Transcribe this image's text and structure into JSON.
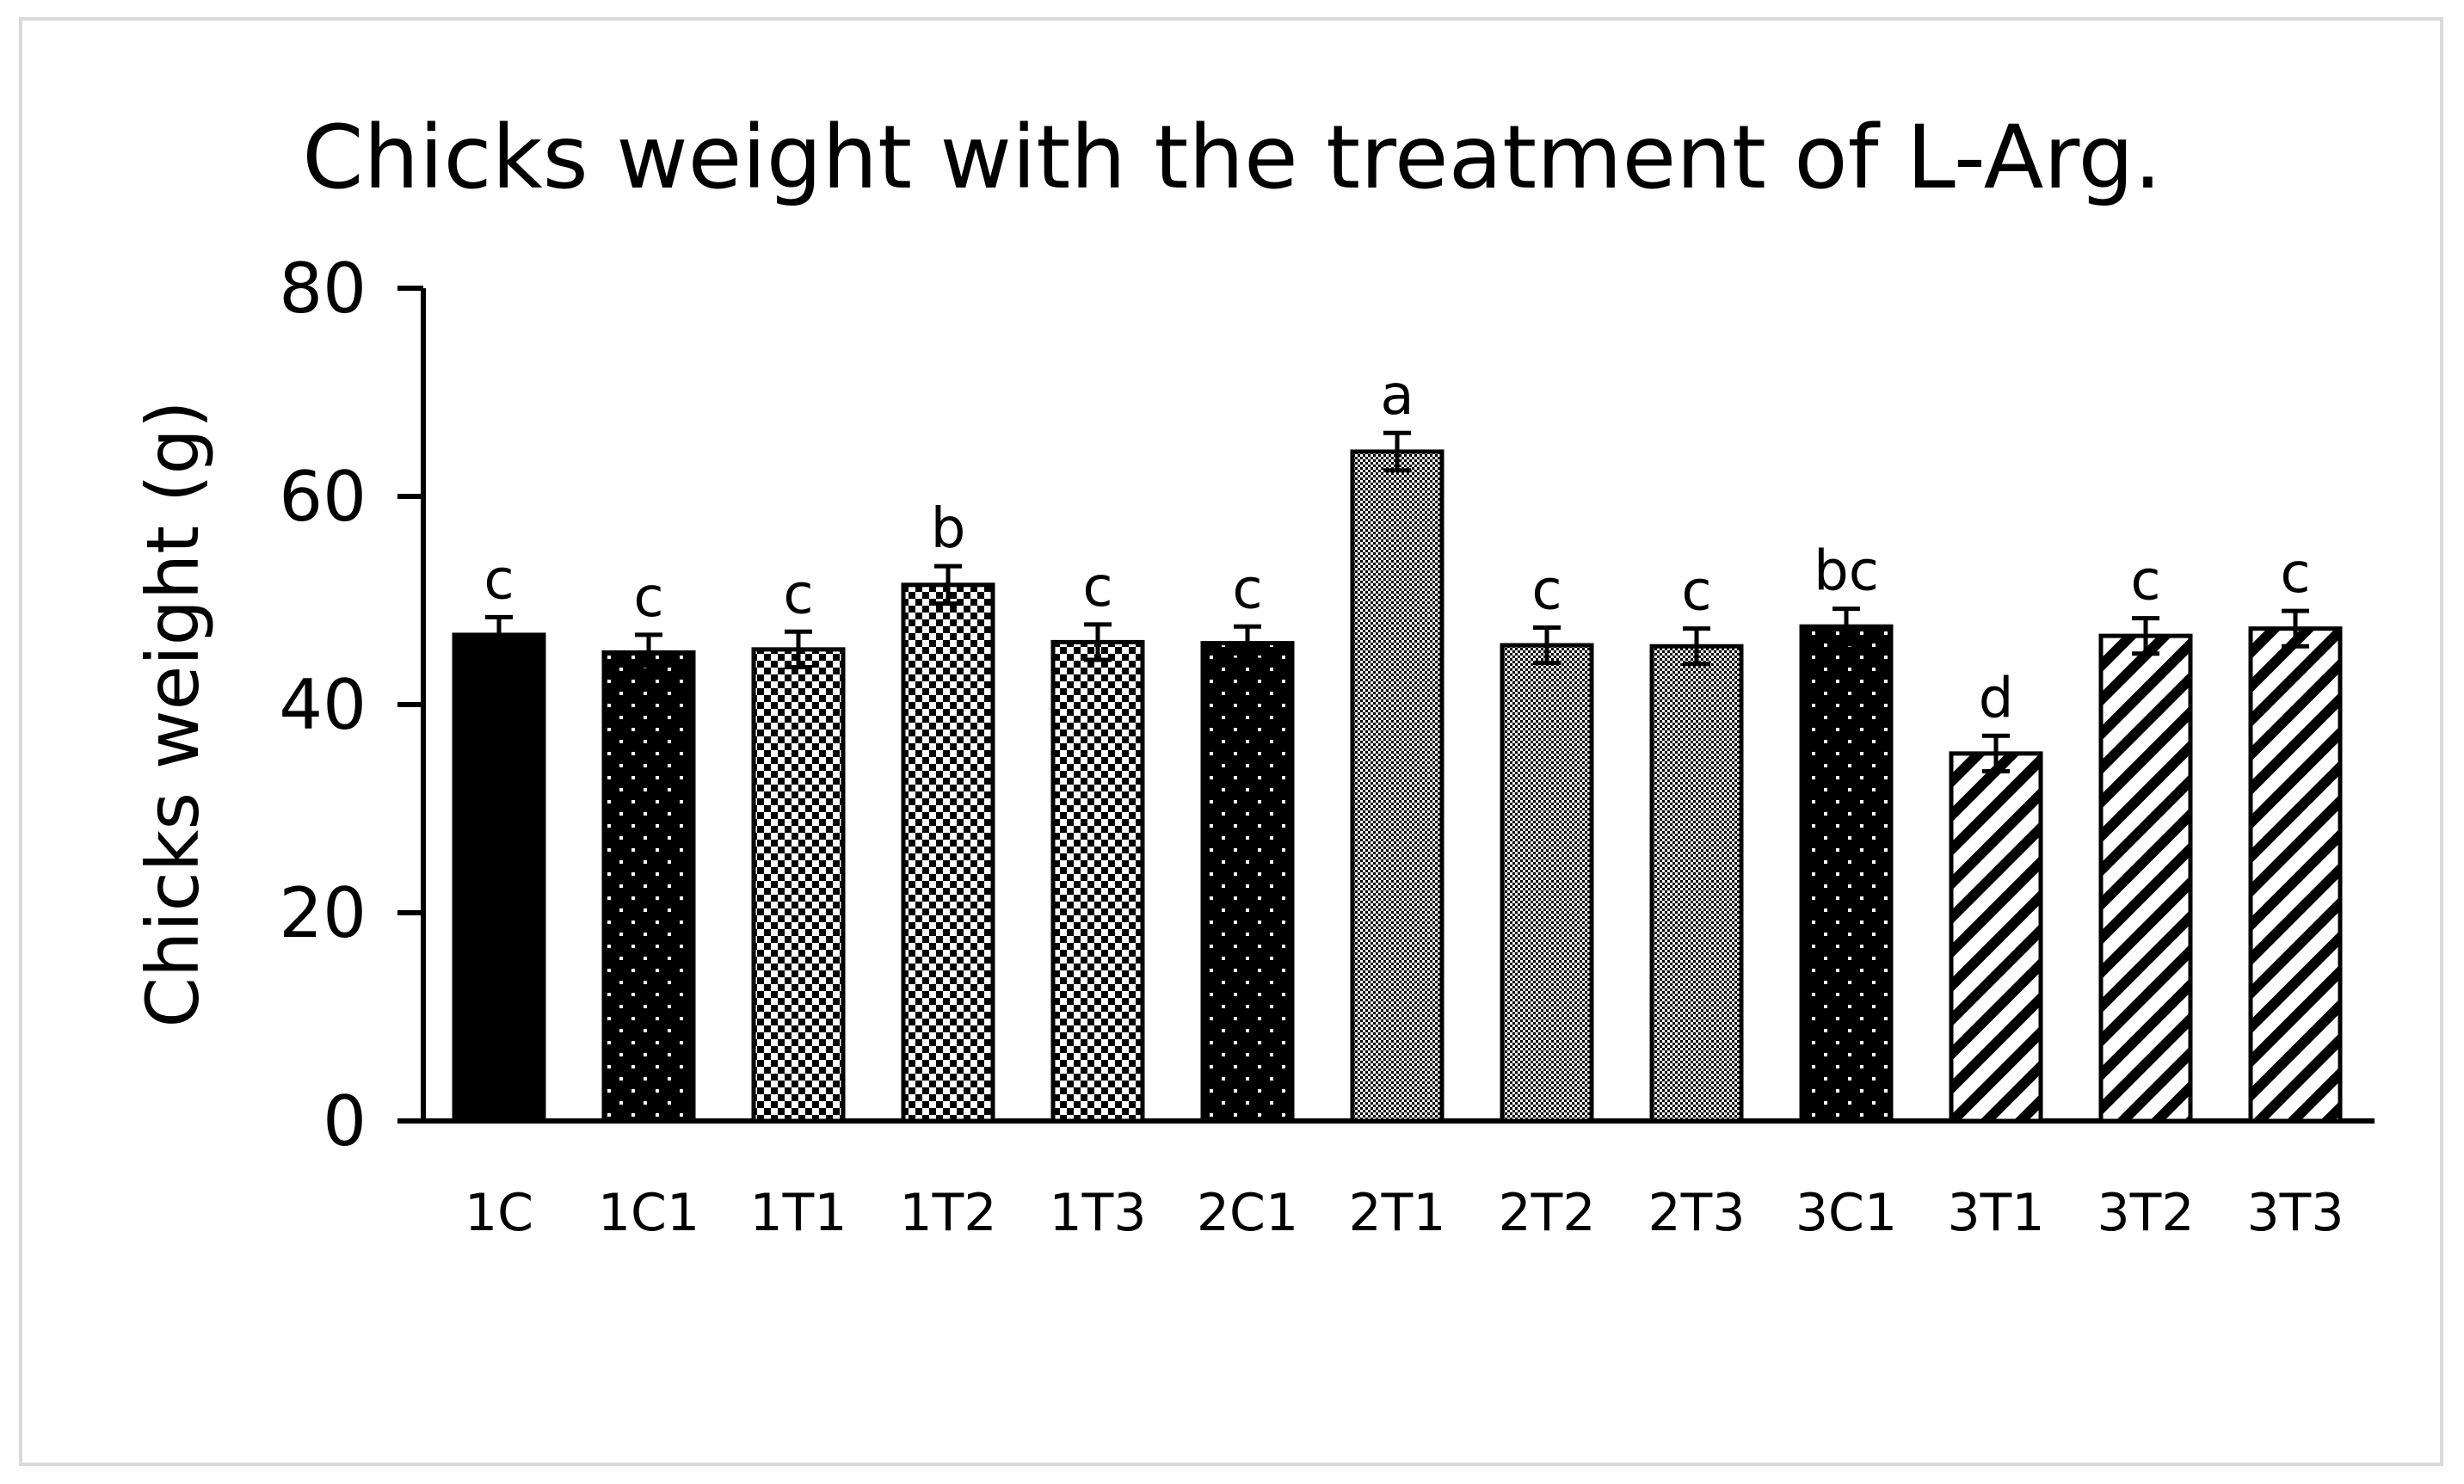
{
  "chart_data": {
    "type": "bar",
    "title": "Chicks weight with the treatment of L-Arg.",
    "xlabel": "",
    "ylabel": "Chicks weight (g)",
    "ylim": [
      0,
      80
    ],
    "yticks": [
      "0",
      "20",
      "40",
      "60",
      "80"
    ],
    "grid": false,
    "legend": "none",
    "categories": [
      "1C",
      "1C1",
      "1T1",
      "1T2",
      "1T3",
      "2C1",
      "2T1",
      "2T2",
      "2T3",
      "3C1",
      "3T1",
      "3T2",
      "3T3"
    ],
    "values": [
      46.7,
      45.0,
      45.3,
      51.5,
      46.0,
      45.9,
      64.3,
      45.7,
      45.6,
      47.5,
      35.3,
      46.6,
      47.3
    ],
    "errors": [
      1.7,
      1.7,
      1.7,
      1.8,
      1.7,
      1.6,
      1.8,
      1.7,
      1.7,
      1.7,
      1.7,
      1.7,
      1.7
    ],
    "significance": [
      "c",
      "c",
      "c",
      "b",
      "c",
      "c",
      "a",
      "c",
      "c",
      "bc",
      "d",
      "c",
      "c"
    ],
    "patterns": [
      "solid",
      "sparse-dots",
      "checker",
      "checker",
      "checker",
      "sparse-dots",
      "fine-dots",
      "fine-dots",
      "fine-dots",
      "sparse-dots",
      "diagonal",
      "diagonal",
      "diagonal"
    ],
    "colors": {
      "bar_fill": "#000000",
      "bar_stroke": "#000000",
      "axis": "#000000",
      "background": "#ffffff",
      "frame": "#d9d9d9"
    }
  }
}
